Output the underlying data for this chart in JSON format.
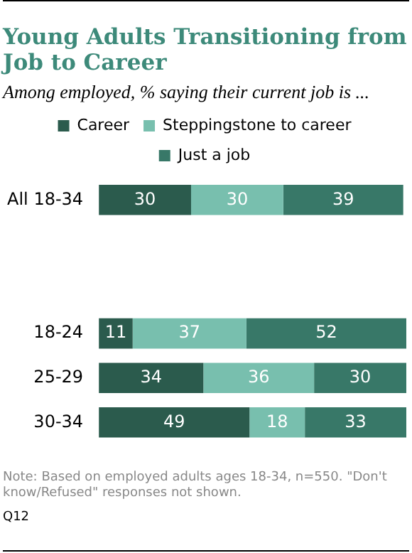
{
  "chart_data": {
    "type": "bar",
    "orientation": "horizontal",
    "stacked": true,
    "title": "Young Adults Transitioning from Job to Career",
    "subtitle": "Among employed, % saying their current job is ...",
    "categories": [
      "All 18-34",
      null,
      null,
      "18-24",
      "25-29",
      "30-34"
    ],
    "series": [
      {
        "name": "Career",
        "color": "#2b5b4d",
        "values": [
          30,
          null,
          null,
          11,
          34,
          49
        ]
      },
      {
        "name": "Steppingstone to career",
        "color": "#78bfae",
        "values": [
          30,
          null,
          null,
          37,
          36,
          18
        ]
      },
      {
        "name": "Just a job",
        "color": "#387868",
        "values": [
          39,
          null,
          null,
          52,
          30,
          33
        ]
      }
    ],
    "data_labels": true,
    "legend": "top",
    "grid": false,
    "annotations": [
      "Note: Based on employed adults ages 18-34, n=550. \"Don't know/Refused\" responses not shown.",
      "Q12"
    ]
  }
}
